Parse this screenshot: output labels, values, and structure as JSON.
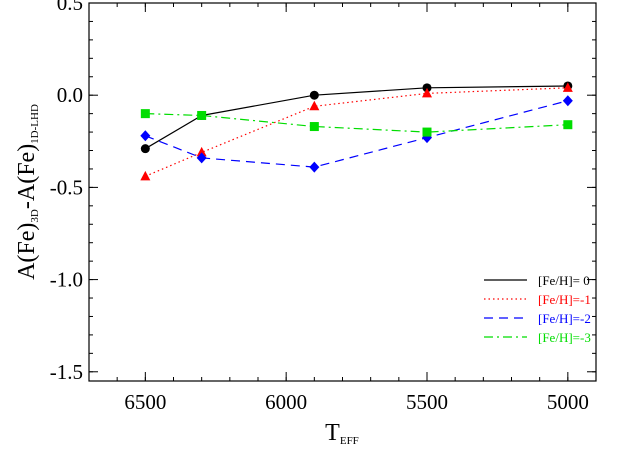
{
  "chart_data": {
    "type": "line",
    "xlabel": {
      "main": "T",
      "sub": "EFF"
    },
    "ylabel": {
      "p1": "A(Fe)",
      "s1": "3D",
      "p2": "-A(Fe)",
      "s2": "1D-LHD"
    },
    "xlim": [
      6700,
      4900
    ],
    "ylim": [
      -1.55,
      0.5
    ],
    "x_ticks": [
      6500,
      6000,
      5500,
      5000
    ],
    "x_tick_labels": [
      "6500",
      "6000",
      "5500",
      "5000"
    ],
    "y_ticks": [
      0.5,
      0.0,
      -0.5,
      -1.0,
      -1.5
    ],
    "y_tick_labels": [
      "0.5",
      "0.0",
      "-0.5",
      "-1.0",
      "-1.5"
    ],
    "grid": false,
    "legend_position": "bottom-right",
    "series": [
      {
        "name": "[Fe/H]= 0",
        "color": "#000000",
        "dash": "solid",
        "marker": "circle",
        "x": [
          6500,
          6300,
          5900,
          5500,
          5000
        ],
        "y": [
          -0.29,
          -0.11,
          0.0,
          0.04,
          0.05
        ]
      },
      {
        "name": "[Fe/H]=-1",
        "color": "#ff0000",
        "dash": "dotted",
        "marker": "triangle",
        "x": [
          6500,
          6300,
          5900,
          5500,
          5000
        ],
        "y": [
          -0.44,
          -0.31,
          -0.06,
          0.01,
          0.04
        ]
      },
      {
        "name": "[Fe/H]=-2",
        "color": "#0000ff",
        "dash": "dashed",
        "marker": "diamond",
        "x": [
          6500,
          6300,
          5900,
          5500,
          5000
        ],
        "y": [
          -0.22,
          -0.34,
          -0.39,
          -0.23,
          -0.03
        ]
      },
      {
        "name": "[Fe/H]=-3",
        "color": "#00dd00",
        "dash": "dashdot",
        "marker": "square",
        "x": [
          6500,
          6300,
          5900,
          5500,
          5000
        ],
        "y": [
          -0.1,
          -0.11,
          -0.17,
          -0.2,
          -0.16
        ]
      }
    ]
  }
}
